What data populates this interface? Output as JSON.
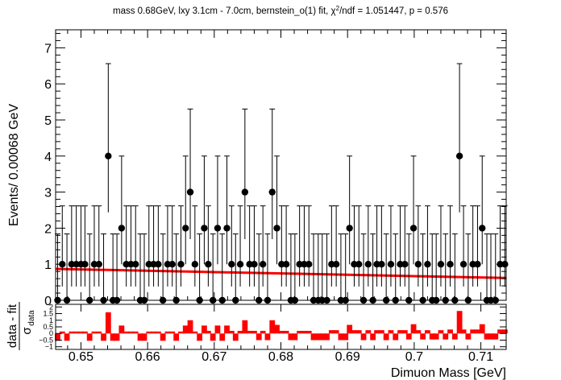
{
  "chart_data": {
    "type": "scatter",
    "title": "mass 0.68GeV, lxy 3.1cm - 7.0cm, bernstein_o(1) fit, χ²/ndf = 1.051447, p = 0.576",
    "title_main": "mass 0.68GeV, lxy 3.1cm - 7.0cm, bernstein_o(1) fit, χ",
    "title_sup": "2",
    "title_tail": "/ndf = 1.051447, p = 0.576",
    "xlabel": "Dimuon Mass [GeV]",
    "ylabel": "Events/ 0.00068 GeV",
    "pull_ylabel_num": "data - fit",
    "pull_ylabel_den": "σ",
    "pull_ylabel_den_sub": "data",
    "xlim": [
      0.6462,
      0.7138
    ],
    "ylim": [
      0,
      7.5
    ],
    "pull_ylim": [
      -1.2,
      2.2
    ],
    "x_ticks": [
      0.65,
      0.66,
      0.67,
      0.68,
      0.69,
      0.7,
      0.71
    ],
    "x_tick_labels": [
      "0.65",
      "0.66",
      "0.67",
      "0.68",
      "0.69",
      "0.7",
      "0.71"
    ],
    "y_ticks": [
      0,
      1,
      2,
      3,
      4,
      5,
      6,
      7
    ],
    "pull_y_ticks": [
      -1,
      -0.5,
      0,
      0.5,
      1,
      1.5,
      2
    ],
    "pull_y_tick_labels": [
      "−1",
      "−0.5",
      "0",
      "0.5",
      "1",
      "1.5",
      "2"
    ],
    "grid": false,
    "colors": {
      "data": "#000000",
      "fit": "#ff0000",
      "pull": "#ff0000"
    },
    "fit_curve": {
      "x": [
        0.6462,
        0.7138
      ],
      "y": [
        0.87,
        0.62
      ]
    },
    "data_x": [
      0.6465,
      0.6472,
      0.6479,
      0.6486,
      0.6493,
      0.65,
      0.6506,
      0.6513,
      0.652,
      0.6527,
      0.6534,
      0.6541,
      0.6548,
      0.6554,
      0.6561,
      0.6568,
      0.6575,
      0.6582,
      0.6589,
      0.6595,
      0.6602,
      0.6609,
      0.6616,
      0.6623,
      0.663,
      0.6637,
      0.6643,
      0.665,
      0.6657,
      0.6664,
      0.6671,
      0.6678,
      0.6685,
      0.6691,
      0.6698,
      0.6705,
      0.6712,
      0.6719,
      0.6726,
      0.6732,
      0.6739,
      0.6746,
      0.6753,
      0.676,
      0.6767,
      0.6773,
      0.678,
      0.6787,
      0.6794,
      0.6801,
      0.6808,
      0.6815,
      0.6821,
      0.6828,
      0.6835,
      0.6842,
      0.6849,
      0.6856,
      0.6862,
      0.6869,
      0.6876,
      0.6883,
      0.689,
      0.6897,
      0.6903,
      0.691,
      0.6917,
      0.6924,
      0.6931,
      0.6938,
      0.6944,
      0.6951,
      0.6958,
      0.6965,
      0.6972,
      0.6979,
      0.6986,
      0.6992,
      0.6999,
      0.7006,
      0.7013,
      0.702,
      0.7027,
      0.7033,
      0.704,
      0.7047,
      0.7054,
      0.7061,
      0.7068,
      0.7074,
      0.7081,
      0.7088,
      0.7095,
      0.7102,
      0.7109,
      0.7115,
      0.7122,
      0.7129,
      0.7136
    ],
    "data_y": [
      0,
      1,
      0,
      1,
      1,
      1,
      1,
      0,
      1,
      1,
      0,
      4,
      0,
      0,
      2,
      1,
      1,
      1,
      0,
      0,
      1,
      1,
      1,
      0,
      1,
      1,
      0,
      1,
      2,
      3,
      1,
      0,
      2,
      1,
      0,
      2,
      0,
      2,
      1,
      0,
      1,
      3,
      1,
      1,
      0,
      1,
      0,
      3,
      2,
      1,
      1,
      0,
      0,
      1,
      1,
      1,
      0,
      0,
      0,
      0,
      1,
      1,
      0,
      0,
      2,
      1,
      1,
      0,
      1,
      0,
      1,
      1,
      0,
      1,
      0,
      1,
      1,
      0,
      2,
      1,
      0,
      1,
      0,
      0,
      1,
      0,
      1,
      0,
      4,
      1,
      0,
      1,
      1,
      2,
      0,
      0,
      0,
      1,
      1
    ],
    "pulls": [
      -0.55,
      0.15,
      -0.55,
      0.15,
      0.15,
      0.15,
      0.15,
      -0.55,
      0.15,
      0.15,
      -0.55,
      1.6,
      -0.55,
      -0.55,
      0.6,
      0.15,
      0.15,
      0.15,
      -0.55,
      -0.55,
      0.15,
      0.15,
      0.15,
      -0.55,
      0.15,
      0.15,
      -0.55,
      0.15,
      0.6,
      1.0,
      0.15,
      -0.55,
      0.6,
      0.2,
      -0.55,
      0.6,
      -0.55,
      0.6,
      0.2,
      -0.55,
      0.2,
      1.0,
      0.2,
      0.2,
      -0.5,
      0.2,
      -0.5,
      1.0,
      0.65,
      0.2,
      0.2,
      -0.5,
      -0.5,
      0.2,
      0.2,
      0.2,
      -0.5,
      -0.5,
      -0.5,
      -0.5,
      0.25,
      0.25,
      -0.5,
      -0.5,
      0.65,
      0.25,
      0.25,
      -0.5,
      0.25,
      -0.5,
      0.25,
      0.25,
      -0.5,
      0.25,
      -0.5,
      0.25,
      0.25,
      -0.45,
      0.7,
      0.25,
      -0.45,
      0.25,
      -0.45,
      -0.45,
      0.25,
      -0.45,
      0.3,
      -0.45,
      1.7,
      0.3,
      -0.45,
      0.3,
      0.3,
      0.7,
      -0.45,
      -0.45,
      -0.45,
      0.3,
      0.3
    ]
  }
}
